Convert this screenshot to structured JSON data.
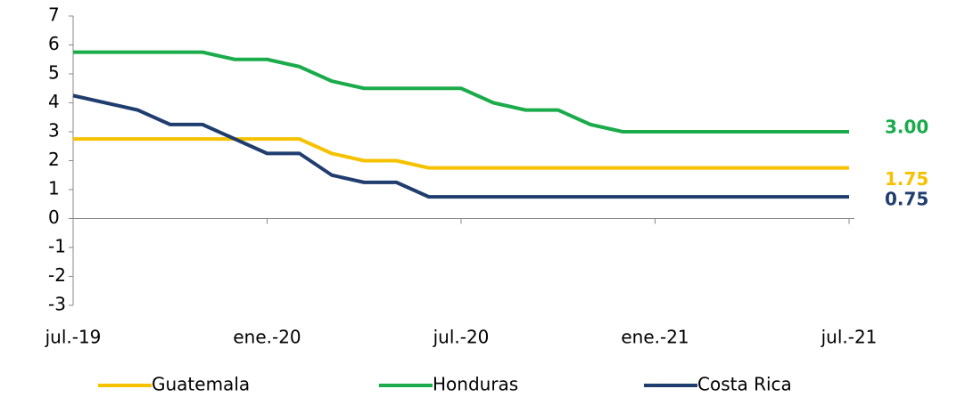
{
  "chart_data": {
    "type": "line",
    "categories": [
      "jul.-19",
      null,
      null,
      null,
      null,
      null,
      "ene.-20",
      null,
      null,
      null,
      null,
      null,
      "jul.-20",
      null,
      null,
      null,
      null,
      null,
      "ene.-21",
      null,
      null,
      null,
      null,
      null,
      "jul.-21"
    ],
    "series": [
      {
        "name": "Guatemala",
        "color": "#f6c200",
        "values": [
          2.75,
          2.75,
          2.75,
          2.75,
          2.75,
          2.75,
          2.75,
          2.75,
          2.25,
          2.0,
          2.0,
          1.75,
          1.75,
          1.75,
          1.75,
          1.75,
          1.75,
          1.75,
          1.75,
          1.75,
          1.75,
          1.75,
          1.75,
          1.75,
          1.75
        ],
        "value_labels": [
          null,
          null,
          null,
          null,
          null,
          null,
          null,
          null,
          null,
          null,
          null,
          null,
          null,
          null,
          null,
          null,
          null,
          null,
          null,
          null,
          null,
          null,
          null,
          null,
          "1.75"
        ]
      },
      {
        "name": "Honduras",
        "color": "#1aab4b",
        "values": [
          5.75,
          5.75,
          5.75,
          5.75,
          5.75,
          5.5,
          5.5,
          5.25,
          4.75,
          4.5,
          4.5,
          4.5,
          4.5,
          4.0,
          3.75,
          3.75,
          3.25,
          3.0,
          3.0,
          3.0,
          3.0,
          3.0,
          3.0,
          3.0,
          3.0
        ],
        "value_labels": [
          null,
          null,
          null,
          null,
          null,
          null,
          null,
          null,
          null,
          null,
          null,
          null,
          null,
          null,
          null,
          null,
          null,
          null,
          null,
          null,
          null,
          null,
          null,
          null,
          "3.00"
        ]
      },
      {
        "name": "Costa Rica",
        "color": "#1f3d6e",
        "values": [
          4.25,
          4.0,
          3.75,
          3.25,
          3.25,
          2.75,
          2.25,
          2.25,
          1.5,
          1.25,
          1.25,
          0.75,
          0.75,
          0.75,
          0.75,
          0.75,
          0.75,
          0.75,
          0.75,
          0.75,
          0.75,
          0.75,
          0.75,
          0.75,
          0.75
        ],
        "value_labels": [
          null,
          null,
          null,
          null,
          null,
          null,
          null,
          null,
          null,
          null,
          null,
          null,
          null,
          null,
          null,
          null,
          null,
          null,
          null,
          null,
          null,
          null,
          null,
          null,
          "0.75"
        ]
      }
    ],
    "ylim": [
      -3,
      7
    ],
    "yticks": [
      -3,
      -2,
      -1,
      0,
      1,
      2,
      3,
      4,
      5,
      6,
      7
    ],
    "legend": "bottom"
  }
}
